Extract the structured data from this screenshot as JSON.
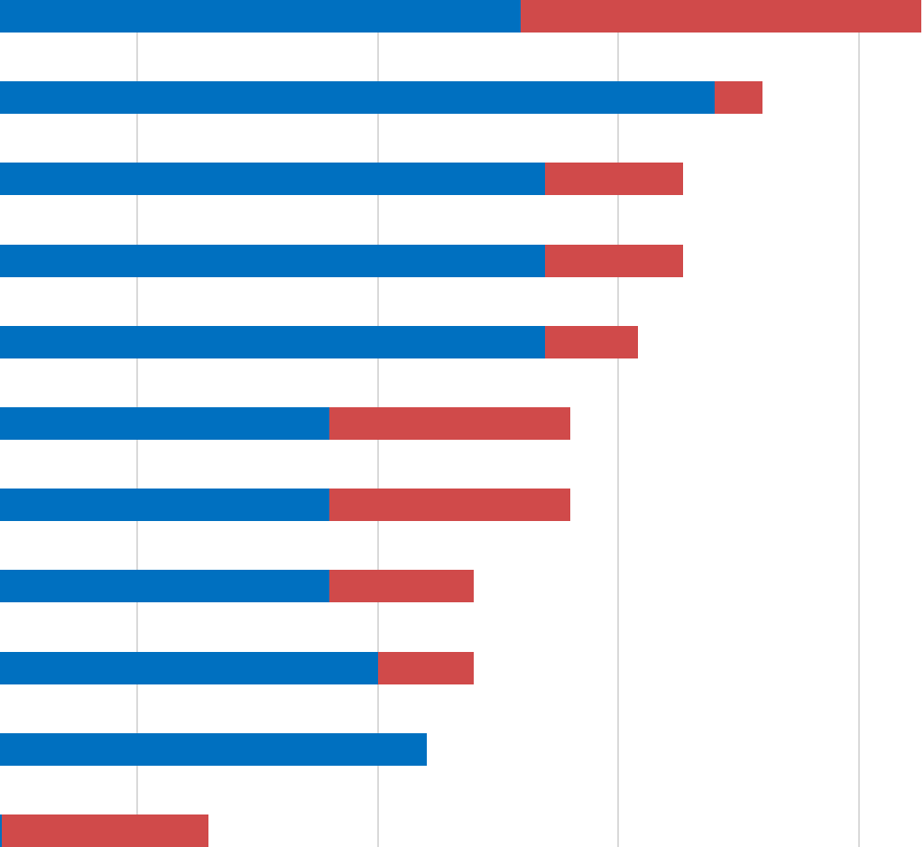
{
  "chart_data": {
    "type": "bar",
    "orientation": "horizontal",
    "stacked": true,
    "categories": [
      null,
      null,
      null,
      null,
      null,
      null,
      null,
      null,
      null,
      null,
      null
    ],
    "series": [
      {
        "color": "#0070c0",
        "values": [
          10.82,
          14.85,
          11.33,
          11.33,
          11.33,
          6.85,
          6.85,
          6.85,
          7.85,
          8.86,
          0.04
        ]
      },
      {
        "color": "#d04a4a",
        "values": [
          8.33,
          0.99,
          2.87,
          2.87,
          1.93,
          5.0,
          5.0,
          3.0,
          2.0,
          0,
          4.3
        ]
      }
    ],
    "xlim": [
      0,
      19.2
    ],
    "xticks": [
      2.85,
      7.85,
      12.85,
      17.85
    ],
    "grid": true,
    "tick_labels": false
  }
}
